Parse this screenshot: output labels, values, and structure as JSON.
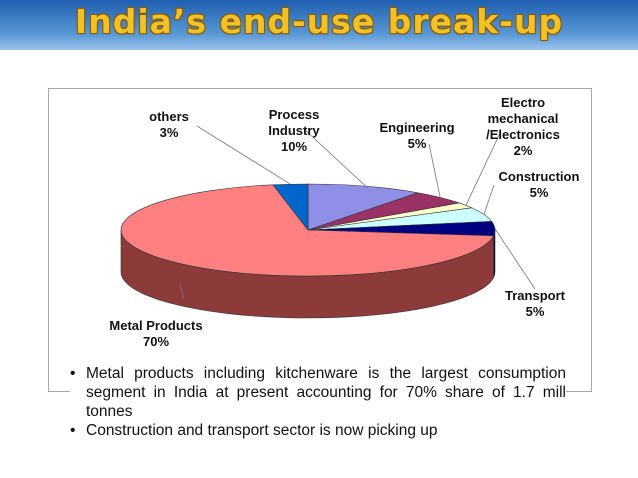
{
  "title": "India’s end-use break-up",
  "colors": {
    "title_fill": "#f1c12a",
    "band_top": "#1f5fb0",
    "band_bottom": "#9cc3ea"
  },
  "chart_data": {
    "type": "pie",
    "style": "3d",
    "slices": [
      {
        "label_lines": [
          "Process",
          "Industry"
        ],
        "pct_label": "10%",
        "value": 10,
        "color": "#8f8fe8",
        "side": "#5d5db0"
      },
      {
        "label_lines": [
          "Engineering"
        ],
        "pct_label": "5%",
        "value": 5,
        "color": "#993366",
        "side": "#66203f"
      },
      {
        "label_lines": [
          "Electro",
          "mechanical",
          "/Electronics"
        ],
        "pct_label": "2%",
        "value": 2,
        "color": "#ffffcc",
        "side": "#bdbd8e"
      },
      {
        "label_lines": [
          "Construction"
        ],
        "pct_label": "5%",
        "value": 5,
        "color": "#ccffff",
        "side": "#8ebdbd"
      },
      {
        "label_lines": [
          "Transport"
        ],
        "pct_label": "5%",
        "value": 5,
        "color": "#000080",
        "side": "#00004d"
      },
      {
        "label_lines": [
          "Metal Products"
        ],
        "pct_label": "70%",
        "value": 70,
        "color": "#ff8080",
        "side": "#8c3a3a"
      },
      {
        "label_lines": [
          "others"
        ],
        "pct_label": "3%",
        "value": 3,
        "color": "#0066cc",
        "side": "#003f80"
      }
    ]
  },
  "bullets": [
    "Metal products including kitchenware is the largest consumption segment in India at present accounting for 70% share of 1.7 mill tonnes",
    "Construction and transport sector is now picking up"
  ],
  "bullet_glyph": "•"
}
